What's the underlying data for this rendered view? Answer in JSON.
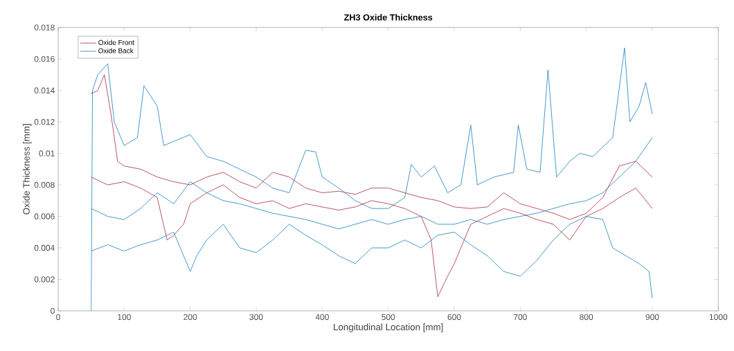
{
  "chart_data": {
    "type": "line",
    "title": "ZH3 Oxide Thickness",
    "xlabel": "Longitudinal Location [mm]",
    "ylabel": "Oxide Thickness [mm]",
    "xlim": [
      0,
      1000
    ],
    "ylim": [
      0,
      0.018
    ],
    "xticks": [
      0,
      100,
      200,
      300,
      400,
      500,
      600,
      700,
      800,
      900,
      1000
    ],
    "yticks": [
      0,
      0.002,
      0.004,
      0.006,
      0.008,
      0.01,
      0.012,
      0.014,
      0.016,
      0.018
    ],
    "legend": "top left",
    "grid": false,
    "marker": "none",
    "line_style": "solid",
    "series": [
      {
        "name": "Oxide Front",
        "color": "#a2142f",
        "x": [
          50,
          60,
          70,
          80,
          90,
          100,
          125,
          150,
          175,
          200,
          225,
          250,
          275,
          300,
          325,
          350,
          375,
          400,
          425,
          450,
          475,
          500,
          525,
          550,
          575,
          600,
          625,
          650,
          675,
          700,
          725,
          750,
          775,
          800,
          825,
          850,
          875,
          900
        ],
        "values": [
          0.0138,
          0.014,
          0.015,
          0.0125,
          0.0095,
          0.0092,
          0.009,
          0.0085,
          0.0082,
          0.008,
          0.0085,
          0.0088,
          0.0082,
          0.0078,
          0.0088,
          0.0085,
          0.0078,
          0.0075,
          0.0076,
          0.0074,
          0.0078,
          0.0078,
          0.0075,
          0.0072,
          0.007,
          0.0066,
          0.0065,
          0.0066,
          0.0075,
          0.0068,
          0.0065,
          0.0062,
          0.0058,
          0.0062,
          0.0072,
          0.0092,
          0.0095,
          0.0085
        ]
      },
      {
        "name": "Oxide Back",
        "color": "#0072bd",
        "x": [
          50,
          52,
          60,
          75,
          85,
          100,
          120,
          130,
          150,
          160,
          200,
          225,
          250,
          275,
          300,
          325,
          350,
          375,
          390,
          400,
          425,
          450,
          475,
          500,
          525,
          535,
          550,
          570,
          590,
          610,
          625,
          635,
          660,
          690,
          697,
          710,
          730,
          742,
          755,
          775,
          790,
          810,
          840,
          858,
          866,
          880,
          890,
          900
        ],
        "values": [
          0.0,
          0.014,
          0.015,
          0.0157,
          0.012,
          0.0105,
          0.011,
          0.0143,
          0.013,
          0.0105,
          0.0112,
          0.0098,
          0.0095,
          0.009,
          0.0085,
          0.0078,
          0.0075,
          0.0102,
          0.0101,
          0.0085,
          0.0078,
          0.007,
          0.0065,
          0.0065,
          0.0072,
          0.0093,
          0.0085,
          0.0092,
          0.0075,
          0.008,
          0.0118,
          0.008,
          0.0085,
          0.0088,
          0.0118,
          0.009,
          0.0088,
          0.0153,
          0.0085,
          0.0095,
          0.01,
          0.0098,
          0.011,
          0.0167,
          0.012,
          0.013,
          0.0145,
          0.0125
        ]
      },
      {
        "color": "#a2142f",
        "x": [
          50,
          75,
          100,
          125,
          150,
          165,
          175,
          190,
          200,
          225,
          250,
          275,
          300,
          325,
          350,
          375,
          400,
          425,
          450,
          475,
          500,
          525,
          550,
          565,
          575,
          590,
          600,
          625,
          650,
          675,
          700,
          725,
          750,
          775,
          800,
          825,
          850,
          875,
          900
        ],
        "values": [
          0.0085,
          0.008,
          0.0082,
          0.0078,
          0.0072,
          0.0045,
          0.0048,
          0.0055,
          0.0068,
          0.0075,
          0.008,
          0.0072,
          0.0068,
          0.007,
          0.0065,
          0.0068,
          0.0066,
          0.0064,
          0.0066,
          0.007,
          0.0068,
          0.0065,
          0.006,
          0.0045,
          0.0009,
          0.0022,
          0.003,
          0.0055,
          0.006,
          0.0065,
          0.0062,
          0.0058,
          0.0055,
          0.0045,
          0.006,
          0.0065,
          0.0072,
          0.0078,
          0.0065
        ]
      },
      {
        "color": "#0072bd",
        "x": [
          50,
          75,
          100,
          125,
          150,
          175,
          200,
          210,
          225,
          250,
          275,
          300,
          325,
          350,
          375,
          400,
          425,
          450,
          475,
          500,
          525,
          550,
          575,
          600,
          625,
          650,
          675,
          700,
          725,
          750,
          775,
          800,
          825,
          840,
          860,
          880,
          895,
          900
        ],
        "values": [
          0.0038,
          0.0042,
          0.0038,
          0.0042,
          0.0045,
          0.005,
          0.0025,
          0.0035,
          0.0045,
          0.0055,
          0.004,
          0.0037,
          0.0045,
          0.0055,
          0.0048,
          0.0042,
          0.0035,
          0.003,
          0.004,
          0.004,
          0.0045,
          0.004,
          0.0048,
          0.005,
          0.0042,
          0.0035,
          0.0025,
          0.0022,
          0.0032,
          0.0045,
          0.0055,
          0.006,
          0.0058,
          0.004,
          0.0035,
          0.003,
          0.0025,
          0.0008
        ]
      },
      {
        "color": "#0072bd",
        "x": [
          50,
          75,
          100,
          125,
          150,
          175,
          200,
          225,
          250,
          275,
          300,
          325,
          350,
          375,
          400,
          425,
          450,
          475,
          500,
          525,
          550,
          575,
          600,
          625,
          650,
          675,
          700,
          725,
          750,
          775,
          800,
          825,
          850,
          875,
          900
        ],
        "values": [
          0.0065,
          0.006,
          0.0058,
          0.0065,
          0.0075,
          0.0068,
          0.0082,
          0.0075,
          0.007,
          0.0068,
          0.0065,
          0.0062,
          0.006,
          0.0058,
          0.0055,
          0.0052,
          0.0055,
          0.0058,
          0.0055,
          0.0058,
          0.006,
          0.0055,
          0.0055,
          0.0058,
          0.0055,
          0.0058,
          0.006,
          0.0062,
          0.0065,
          0.0068,
          0.007,
          0.0075,
          0.0085,
          0.0095,
          0.011
        ]
      }
    ]
  }
}
